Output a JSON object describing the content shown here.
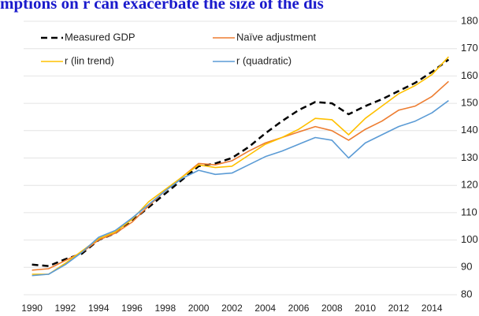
{
  "chart_data": {
    "type": "line",
    "title": "mptions on r can exacerbate the size of the dis",
    "categories": [
      "1990",
      null,
      "1992",
      null,
      "1994",
      null,
      "1996",
      null,
      "1998",
      null,
      "2000",
      null,
      "2002",
      null,
      "2004",
      null,
      "2006",
      null,
      "2008",
      null,
      "2010",
      null,
      "2012",
      null,
      "2014",
      null
    ],
    "series": [
      {
        "name": "Measured GDP",
        "color": "#000000",
        "dashed": true,
        "values": [
          91,
          90.5,
          93,
          95,
          100,
          102.5,
          107,
          112,
          117,
          122,
          127,
          128,
          130,
          134,
          139,
          143.5,
          147.5,
          150.5,
          150,
          146,
          149,
          151.5,
          154.5,
          157.5,
          161.5,
          166
        ]
      },
      {
        "name": "Naïve adjustment",
        "color": "#ED7D31",
        "values": [
          89,
          89.5,
          92.5,
          95.5,
          100,
          102.5,
          106.5,
          112.5,
          118,
          123,
          128,
          127.5,
          129,
          132.5,
          135.5,
          137.5,
          139.5,
          141.5,
          140,
          136.5,
          140.5,
          143.5,
          147.5,
          149,
          152.5,
          158
        ]
      },
      {
        "name": "r (lin trend)",
        "color": "#FFC000",
        "values": [
          87.5,
          87.5,
          91.5,
          96,
          100.5,
          103,
          107.5,
          114,
          118.5,
          123,
          127.5,
          126.5,
          127,
          131,
          135,
          137.5,
          140.5,
          144.5,
          144,
          138.5,
          144.5,
          149,
          153.5,
          156.5,
          160.5,
          167
        ]
      },
      {
        "name": "r (quadratic)",
        "color": "#5B9BD5",
        "values": [
          87,
          87.5,
          91,
          95.5,
          101,
          103.5,
          108,
          113,
          118,
          122.5,
          125.5,
          124,
          124.5,
          127.5,
          130.5,
          132.5,
          135,
          137.5,
          136.5,
          130,
          135.5,
          138.5,
          141.5,
          143.5,
          146.5,
          151
        ]
      }
    ],
    "ylim": [
      80,
      180
    ],
    "yticks": [
      80,
      90,
      100,
      110,
      120,
      130,
      140,
      150,
      160,
      170,
      180
    ],
    "grid": true,
    "y_axis_side": "right"
  }
}
